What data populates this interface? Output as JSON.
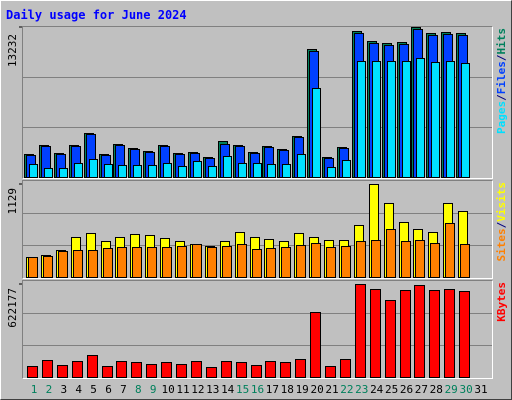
{
  "title": "Daily usage for June 2024",
  "chart_data": [
    {
      "type": "bar",
      "ylim": [
        0,
        13232
      ],
      "yticks": [
        13232
      ],
      "legend_separator": "/",
      "series": [
        {
          "name": "Hits",
          "color": "#00805c",
          "values": [
            2046,
            2840,
            2131,
            2845,
            3902,
            2038,
            2925,
            2578,
            2307,
            2843,
            2131,
            2219,
            1770,
            3175,
            2841,
            2220,
            2751,
            2487,
            3640,
            11250,
            1771,
            2663,
            12853,
            11962,
            11790,
            11880,
            13232,
            12680,
            12789,
            12672,
            null
          ]
        },
        {
          "name": "Files",
          "color": "#0040ff",
          "values": [
            1940,
            2734,
            2029,
            2734,
            3793,
            1940,
            2822,
            2470,
            2205,
            2734,
            2029,
            2117,
            1676,
            2911,
            2734,
            2117,
            2646,
            2381,
            3528,
            11113,
            1676,
            2558,
            12701,
            11819,
            11642,
            11731,
            13054,
            12524,
            12613,
            12524,
            null
          ]
        },
        {
          "name": "Pages",
          "color": "#00e0ff",
          "values": [
            1147,
            794,
            794,
            1235,
            1588,
            1147,
            1058,
            1058,
            1058,
            1235,
            970,
            1411,
            970,
            1852,
            1235,
            1235,
            1147,
            1147,
            2029,
            7850,
            882,
            1499,
            10231,
            10231,
            10231,
            10231,
            10496,
            10143,
            10231,
            10055,
            null
          ]
        }
      ]
    },
    {
      "type": "bar",
      "ylim": [
        0,
        1129
      ],
      "yticks": [
        1129
      ],
      "legend_separator": "/",
      "series": [
        {
          "name": "Visits",
          "color": "#ffff00",
          "values": [
            243,
            267,
            328,
            486,
            534,
            437,
            486,
            522,
            510,
            473,
            437,
            401,
            376,
            437,
            546,
            486,
            461,
            437,
            534,
            486,
            449,
            449,
            631,
            1129,
            898,
            668,
            583,
            546,
            898,
            801,
            null
          ]
        },
        {
          "name": "Sites",
          "color": "#ff8000",
          "values": [
            240,
            255,
            320,
            328,
            328,
            352,
            364,
            364,
            364,
            364,
            376,
            395,
            364,
            376,
            401,
            340,
            352,
            364,
            388,
            413,
            364,
            376,
            437,
            449,
            583,
            437,
            449,
            413,
            656,
            401,
            null
          ]
        }
      ]
    },
    {
      "type": "bar",
      "ylim": [
        0,
        622177
      ],
      "yticks": [
        622177
      ],
      "categories": [
        "1",
        "2",
        "3",
        "4",
        "5",
        "6",
        "7",
        "8",
        "9",
        "10",
        "11",
        "12",
        "13",
        "14",
        "15",
        "16",
        "17",
        "18",
        "19",
        "20",
        "21",
        "22",
        "23",
        "24",
        "25",
        "26",
        "27",
        "28",
        "29",
        "30",
        "31"
      ],
      "category_colors": [
        "#00805c",
        "#00805c",
        "#000000",
        "#000000",
        "#000000",
        "#000000",
        "#000000",
        "#00805c",
        "#00805c",
        "#000000",
        "#000000",
        "#000000",
        "#000000",
        "#000000",
        "#00805c",
        "#00805c",
        "#000000",
        "#000000",
        "#000000",
        "#000000",
        "#000000",
        "#00805c",
        "#00805c",
        "#000000",
        "#000000",
        "#000000",
        "#000000",
        "#000000",
        "#00805c",
        "#00805c",
        "#000000"
      ],
      "series": [
        {
          "name": "KBytes",
          "color": "#ff0000",
          "values": [
            73590,
            113730,
            80280,
            107040,
            147180,
            73590,
            107040,
            100350,
            86970,
            100350,
            86970,
            107040,
            66900,
            107040,
            100350,
            80280,
            107040,
            100350,
            120420,
            434850,
            73590,
            120420,
            622177,
            588720,
            515130,
            582030,
            615480,
            582030,
            588720,
            575340,
            null
          ]
        }
      ]
    }
  ]
}
